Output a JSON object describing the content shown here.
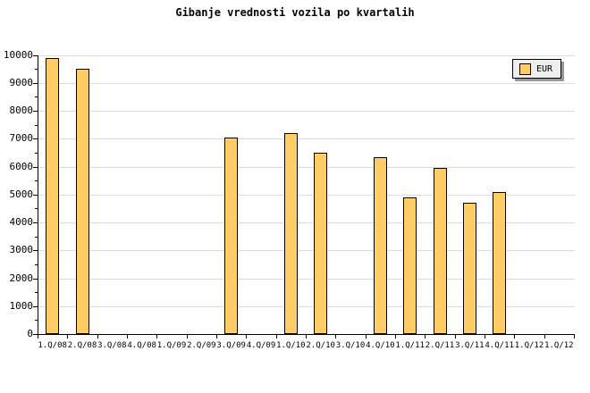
{
  "title": "Gibanje vrednosti vozila po kvartalih",
  "legend": {
    "label": "EUR"
  },
  "colors": {
    "background": "#FFFFFF",
    "bar_fill": "#FFCC66",
    "bar_border": "#000000",
    "grid": "#DCDCDC",
    "axis": "#000000",
    "legend_bg": "#EEEEEE",
    "legend_shadow": "#999999"
  },
  "chart_data": {
    "type": "bar",
    "title": "Gibanje vrednosti vozila po kvartalih",
    "xlabel": "",
    "ylabel": "",
    "categories": [
      "1.Q/08",
      "2.Q/08",
      "3.Q/08",
      "4.Q/08",
      "1.Q/09",
      "2.Q/09",
      "3.Q/09",
      "4.Q/09",
      "1.Q/10",
      "2.Q/10",
      "3.Q/10",
      "4.Q/10",
      "1.Q/11",
      "2.Q/11",
      "3.Q/11",
      "4.Q/11",
      "1.Q/12",
      "1.Q/12"
    ],
    "series": [
      {
        "name": "EUR",
        "values": [
          9900,
          9500,
          null,
          null,
          null,
          null,
          7050,
          null,
          7200,
          6500,
          null,
          6350,
          4900,
          5950,
          4700,
          5100,
          null,
          null
        ]
      }
    ],
    "ylim": [
      0,
      10000
    ],
    "y_tick_step": 1000,
    "y_minor_tick_step": 500,
    "grid": true,
    "legend_position": "top-right"
  }
}
